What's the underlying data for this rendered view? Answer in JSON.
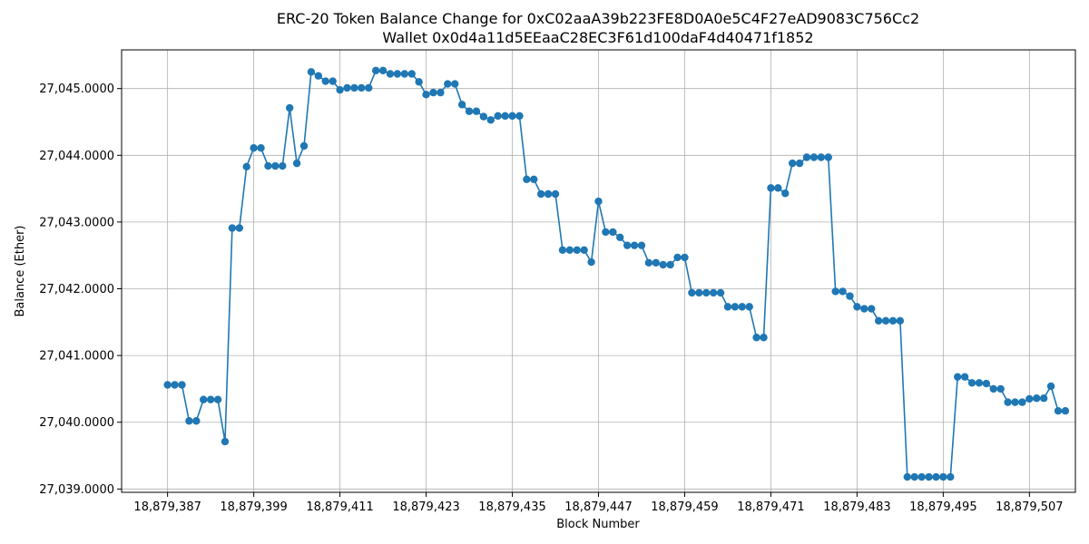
{
  "chart_data": {
    "type": "line",
    "title": "ERC-20 Token Balance Change for 0xC02aaA39b223FE8D0A0e5C4F27eAD9083C756Cc2",
    "subtitle": "Wallet 0x0d4a11d5EEaaC28EC3F61d100daF4d40471f1852",
    "xlabel": "Block Number",
    "ylabel": "Balance (Ether)",
    "xlim": [
      18879380.6,
      18879513.4
    ],
    "ylim": [
      27038.95,
      27045.58
    ],
    "xticks": [
      18879387,
      18879399,
      18879411,
      18879423,
      18879435,
      18879447,
      18879459,
      18879471,
      18879483,
      18879495,
      18879507
    ],
    "xtick_labels": [
      "18,879,387",
      "18,879,399",
      "18,879,411",
      "18,879,423",
      "18,879,435",
      "18,879,447",
      "18,879,459",
      "18,879,471",
      "18,879,483",
      "18,879,495",
      "18,879,507"
    ],
    "yticks": [
      27039,
      27040,
      27041,
      27042,
      27043,
      27044,
      27045
    ],
    "ytick_labels": [
      "27,039.0000",
      "27,040.0000",
      "27,041.0000",
      "27,042.0000",
      "27,043.0000",
      "27,044.0000",
      "27,045.0000"
    ],
    "grid": true,
    "color": "#1f77b4",
    "series": [
      {
        "x": [
          18879387,
          18879388,
          18879389,
          18879390,
          18879391,
          18879392,
          18879393,
          18879394,
          18879395,
          18879396,
          18879397,
          18879398,
          18879399,
          18879400,
          18879401,
          18879402,
          18879403,
          18879404,
          18879405,
          18879406,
          18879407,
          18879408,
          18879409,
          18879410,
          18879411,
          18879412,
          18879413,
          18879414,
          18879415,
          18879416,
          18879417,
          18879418,
          18879419,
          18879420,
          18879421,
          18879422,
          18879423,
          18879424,
          18879425,
          18879426,
          18879427,
          18879428,
          18879429,
          18879430,
          18879431,
          18879432,
          18879433,
          18879434,
          18879435,
          18879436,
          18879437,
          18879438,
          18879439,
          18879440,
          18879441,
          18879442,
          18879443,
          18879444,
          18879445,
          18879446,
          18879447,
          18879448,
          18879449,
          18879450,
          18879451,
          18879452,
          18879453,
          18879454,
          18879455,
          18879456,
          18879457,
          18879458,
          18879459,
          18879460,
          18879461,
          18879462,
          18879463,
          18879464,
          18879465,
          18879466,
          18879467,
          18879468,
          18879469,
          18879470,
          18879471,
          18879472,
          18879473,
          18879474,
          18879475,
          18879476,
          18879477,
          18879478,
          18879479,
          18879480,
          18879481,
          18879482,
          18879483,
          18879484,
          18879485,
          18879486,
          18879487,
          18879488,
          18879489,
          18879490,
          18879491,
          18879492,
          18879493,
          18879494,
          18879495,
          18879496,
          18879497,
          18879498,
          18879499,
          18879500,
          18879501,
          18879502,
          18879503,
          18879504,
          18879505,
          18879506,
          18879507,
          18879508,
          18879509,
          18879510,
          18879511,
          18879512
        ],
        "y": [
          27040.56,
          27040.56,
          27040.56,
          27040.02,
          27040.02,
          27040.34,
          27040.34,
          27040.34,
          27039.71,
          27042.91,
          27042.91,
          27043.83,
          27044.11,
          27044.11,
          27043.84,
          27043.84,
          27043.84,
          27044.71,
          27043.88,
          27044.14,
          27045.25,
          27045.19,
          27045.11,
          27045.11,
          27044.98,
          27045.01,
          27045.01,
          27045.01,
          27045.01,
          27045.27,
          27045.27,
          27045.22,
          27045.22,
          27045.22,
          27045.22,
          27045.1,
          27044.91,
          27044.94,
          27044.94,
          27045.07,
          27045.07,
          27044.76,
          27044.66,
          27044.66,
          27044.58,
          27044.53,
          27044.59,
          27044.59,
          27044.59,
          27044.59,
          27043.64,
          27043.64,
          27043.42,
          27043.42,
          27043.42,
          27042.58,
          27042.58,
          27042.58,
          27042.58,
          27042.4,
          27043.31,
          27042.85,
          27042.85,
          27042.77,
          27042.65,
          27042.65,
          27042.65,
          27042.39,
          27042.39,
          27042.36,
          27042.36,
          27042.47,
          27042.47,
          27041.94,
          27041.94,
          27041.94,
          27041.94,
          27041.94,
          27041.73,
          27041.73,
          27041.73,
          27041.73,
          27041.27,
          27041.27,
          27043.51,
          27043.51,
          27043.43,
          27043.88,
          27043.88,
          27043.97,
          27043.97,
          27043.97,
          27043.97,
          27041.96,
          27041.96,
          27041.89,
          27041.73,
          27041.7,
          27041.7,
          27041.52,
          27041.52,
          27041.52,
          27041.52,
          27039.18,
          27039.18,
          27039.18,
          27039.18,
          27039.18,
          27039.18,
          27039.18,
          27040.68,
          27040.68,
          27040.59,
          27040.59,
          27040.58,
          27040.5,
          27040.5,
          27040.3,
          27040.3,
          27040.3,
          27040.35,
          27040.36,
          27040.36,
          27040.54,
          27040.17,
          27040.17
        ]
      }
    ]
  }
}
